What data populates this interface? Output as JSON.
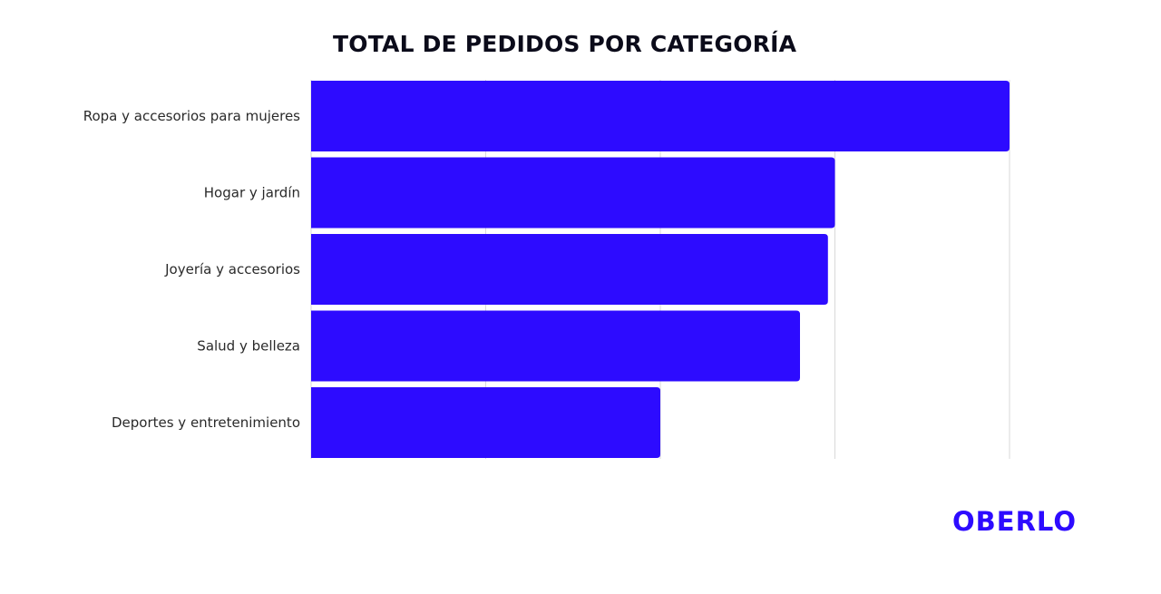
{
  "chart_data": {
    "type": "bar",
    "orientation": "horizontal",
    "title": "TOTAL DE PEDIDOS POR CATEGORÍA",
    "categories": [
      "Ropa y accesorios para mujeres",
      "Hogar y jardín",
      "Joyería y accesorios",
      "Salud y belleza",
      "Deportes y entretenimiento"
    ],
    "values": [
      100,
      75,
      74,
      70,
      50
    ],
    "xlim": [
      0,
      100
    ],
    "xticks": [
      0,
      25,
      50,
      75,
      100
    ],
    "xtick_labels": [
      "",
      "",
      "",
      "",
      ""
    ],
    "grid": true,
    "bar_color": "#2d0bff",
    "grid_color": "#d9d9d9"
  },
  "brand": {
    "logo_text": "OBERLO",
    "logo_color": "#2d0bff"
  }
}
